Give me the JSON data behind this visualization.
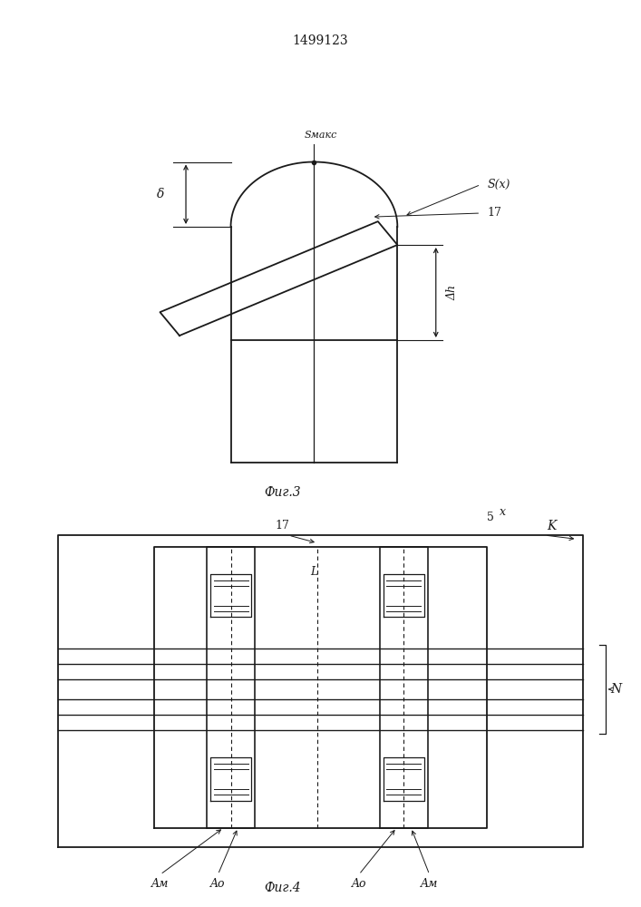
{
  "title": "1499123",
  "fig3_label": "Фиг.3",
  "fig4_label": "Фиг.4",
  "bg_color": "#ffffff",
  "line_color": "#1a1a1a",
  "fig3": {
    "delta_label": "δ",
    "smax_label": "Sмакс",
    "sx_label": "S(x)",
    "label17": "17",
    "label5": "5",
    "delta_h_label": "Δh",
    "L_label": "L",
    "x_label": "x"
  },
  "fig4": {
    "label_17": "17",
    "label_K": "K",
    "label_N": "N",
    "label_Am": "Aм",
    "label_A0": "Aо"
  }
}
